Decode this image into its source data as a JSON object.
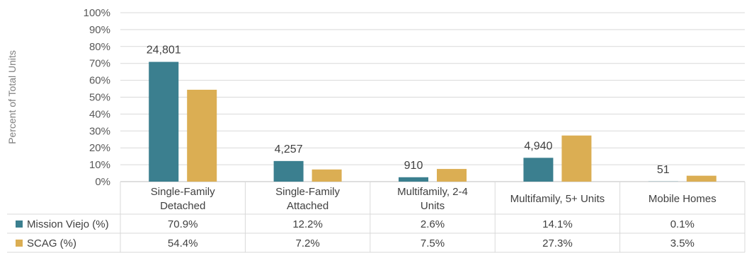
{
  "chart_data": {
    "type": "bar",
    "ylabel": "Percent of Total Units",
    "ylim": [
      0,
      100
    ],
    "yticks": [
      "0%",
      "10%",
      "20%",
      "30%",
      "40%",
      "50%",
      "60%",
      "70%",
      "80%",
      "90%",
      "100%"
    ],
    "categories": [
      [
        "Single-Family",
        "Detached"
      ],
      [
        "Single-Family",
        "Attached"
      ],
      [
        "Multifamily, 2-4",
        "Units"
      ],
      [
        "Multifamily, 5+ Units"
      ],
      [
        "Mobile Homes"
      ]
    ],
    "series": [
      {
        "name": "Mission Viejo (%)",
        "color": "#3b7f8f",
        "values": [
          70.9,
          12.2,
          2.6,
          14.1,
          0.1
        ],
        "table_values": [
          "70.9%",
          "12.2%",
          "2.6%",
          "14.1%",
          "0.1%"
        ],
        "data_labels": [
          "24,801",
          "4,257",
          "910",
          "4,940",
          "51"
        ]
      },
      {
        "name": "SCAG (%)",
        "color": "#dbae53",
        "values": [
          54.4,
          7.2,
          7.5,
          27.3,
          3.5
        ],
        "table_values": [
          "54.4%",
          "7.2%",
          "7.5%",
          "27.3%",
          "3.5%"
        ]
      }
    ],
    "grid": true,
    "legend": "data-table"
  }
}
